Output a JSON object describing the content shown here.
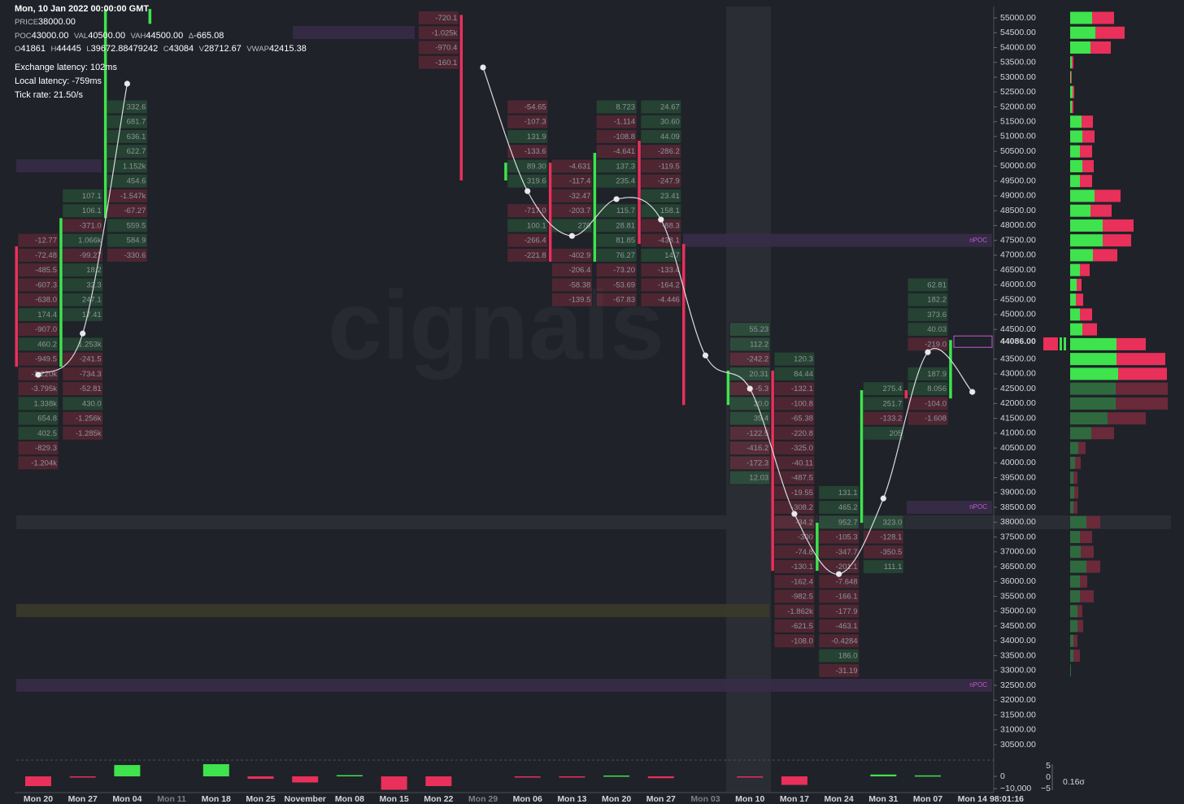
{
  "header": {
    "datetime": "Mon, 10 Jan 2022 00:00:00 GMT",
    "stats1": [
      {
        "key": "PRICE",
        "value": "38000.00"
      }
    ],
    "stats2": [
      {
        "key": "POC",
        "value": "43000.00"
      },
      {
        "key": "VAL",
        "value": "40500.00"
      },
      {
        "key": "VAH",
        "value": "44500.00"
      },
      {
        "key": "Δ",
        "value": "-665.08"
      }
    ],
    "stats3": [
      {
        "key": "O",
        "value": "41861"
      },
      {
        "key": "H",
        "value": "44445"
      },
      {
        "key": "L",
        "value": "39672.88479242"
      },
      {
        "key": "C",
        "value": "43084"
      },
      {
        "key": "V",
        "value": "28712.67"
      },
      {
        "key": "VWAP",
        "value": "42415.38"
      }
    ],
    "latency": [
      "Exchange latency: 102ms",
      "Local latency: -759ms",
      "Tick rate: 21.50/s"
    ]
  },
  "watermark": "cignals",
  "colors": {
    "up": "#3ee34d",
    "down": "#e8305a",
    "up_dim": "#2f6a3f",
    "down_dim": "#6a2a3a"
  },
  "price_axis": {
    "ylim": [
      30500,
      55000
    ],
    "ticks": [
      {
        "value": 55000,
        "label": "55000.00"
      },
      {
        "value": 54500,
        "label": "54500.00"
      },
      {
        "value": 54000,
        "label": "54000.00"
      },
      {
        "value": 53500,
        "label": "53500.00"
      },
      {
        "value": 53000,
        "label": "53000.00"
      },
      {
        "value": 52500,
        "label": "52500.00"
      },
      {
        "value": 52000,
        "label": "52000.00"
      },
      {
        "value": 51500,
        "label": "51500.00"
      },
      {
        "value": 51000,
        "label": "51000.00"
      },
      {
        "value": 50500,
        "label": "50500.00"
      },
      {
        "value": 50000,
        "label": "50000.00"
      },
      {
        "value": 49500,
        "label": "49500.00"
      },
      {
        "value": 49000,
        "label": "49000.00"
      },
      {
        "value": 48500,
        "label": "48500.00"
      },
      {
        "value": 48000,
        "label": "48000.00"
      },
      {
        "value": 47500,
        "label": "47500.00"
      },
      {
        "value": 47000,
        "label": "47000.00"
      },
      {
        "value": 46500,
        "label": "46500.00"
      },
      {
        "value": 46000,
        "label": "46000.00"
      },
      {
        "value": 45500,
        "label": "45500.00"
      },
      {
        "value": 45000,
        "label": "45000.00"
      },
      {
        "value": 44500,
        "label": "44500.00"
      },
      {
        "value": 43500,
        "label": "43500.00"
      },
      {
        "value": 43000,
        "label": "43000.00"
      },
      {
        "value": 42500,
        "label": "42500.00"
      },
      {
        "value": 42000,
        "label": "42000.00"
      },
      {
        "value": 41500,
        "label": "41500.00"
      },
      {
        "value": 41000,
        "label": "41000.00"
      },
      {
        "value": 40500,
        "label": "40500.00"
      },
      {
        "value": 40000,
        "label": "40000.00"
      },
      {
        "value": 39500,
        "label": "39500.00"
      },
      {
        "value": 39000,
        "label": "39000.00"
      },
      {
        "value": 38500,
        "label": "38500.00"
      },
      {
        "value": 38000,
        "label": "38000.00"
      },
      {
        "value": 37500,
        "label": "37500.00"
      },
      {
        "value": 37000,
        "label": "37000.00"
      },
      {
        "value": 36500,
        "label": "36500.00"
      },
      {
        "value": 36000,
        "label": "36000.00"
      },
      {
        "value": 35500,
        "label": "35500.00"
      },
      {
        "value": 35000,
        "label": "35000.00"
      },
      {
        "value": 34500,
        "label": "34500.00"
      },
      {
        "value": 34000,
        "label": "34000.00"
      },
      {
        "value": 33500,
        "label": "33500.00"
      },
      {
        "value": 33000,
        "label": "33000.00"
      },
      {
        "value": 32500,
        "label": "32500.00"
      },
      {
        "value": 32000,
        "label": "32000.00"
      },
      {
        "value": 31500,
        "label": "31500.00"
      },
      {
        "value": 31000,
        "label": "31000.00"
      },
      {
        "value": 30500,
        "label": "30500.00"
      }
    ],
    "current": {
      "value": 44086,
      "label": "44086.00"
    }
  },
  "levels": [
    {
      "label": "nPOC",
      "price": 47500
    },
    {
      "label": "nPOC",
      "price": 38500
    },
    {
      "label": "nPOC",
      "price": 32500
    }
  ],
  "time_axis": {
    "labels": [
      "Mon 20",
      "Mon 27",
      "Mon 04",
      "Mon 11",
      "Mon 18",
      "Mon 25",
      "November",
      "Mon 08",
      "Mon 15",
      "Mon 22",
      "Mon 29",
      "Mon 06",
      "Mon 13",
      "Mon 20",
      "Mon 27",
      "Mon 03",
      "Mon 10",
      "Mon 17",
      "Mon 24",
      "Mon 31",
      "Mon 07",
      "Mon 14"
    ],
    "dim": [
      false,
      false,
      false,
      true,
      false,
      false,
      false,
      false,
      false,
      false,
      true,
      false,
      false,
      false,
      false,
      true,
      false,
      false,
      false,
      false,
      false,
      false
    ],
    "countdown": "98:01:16"
  },
  "candles": [
    {
      "open": 47300,
      "close": 43240
    },
    {
      "open": 43240,
      "close": 48250
    },
    {
      "open": 48250,
      "close": 55300
    },
    {
      "open": 54800,
      "close": 55300
    },
    null,
    null,
    null,
    null,
    null,
    null,
    {
      "open": 55100,
      "close": 49520
    },
    {
      "open": 49520,
      "close": 50120
    },
    {
      "open": 50120,
      "close": 46780
    },
    {
      "open": 46780,
      "close": 50450
    },
    {
      "open": 50860,
      "close": 47380
    },
    {
      "open": 47380,
      "close": 41950
    },
    {
      "open": 41950,
      "close": 43110
    },
    {
      "open": 43110,
      "close": 36360
    },
    {
      "open": 36360,
      "close": 37980
    },
    {
      "open": 37980,
      "close": 42450
    },
    {
      "open": 42450,
      "close": 42170
    },
    {
      "open": 42170,
      "close": 44140
    }
  ],
  "indicator": [
    42970,
    44360,
    52780,
    null,
    null,
    null,
    null,
    null,
    null,
    null,
    53330,
    49160,
    47650,
    48890,
    48200,
    43620,
    42500,
    38280,
    36250,
    38800,
    43730,
    42390
  ],
  "footprint": [
    [
      {
        "price": 47500,
        "text": "-12.77"
      },
      {
        "price": 47000,
        "text": "-72.48"
      },
      {
        "price": 46500,
        "text": "-485.5"
      },
      {
        "price": 46000,
        "text": "-607.3"
      },
      {
        "price": 45500,
        "text": "-638.0"
      },
      {
        "price": 45000,
        "text": "174.4"
      },
      {
        "price": 44500,
        "text": "-907.0"
      },
      {
        "price": 44000,
        "text": "460.2"
      },
      {
        "price": 43500,
        "text": "-949.5"
      },
      {
        "price": 43000,
        "text": "-1.220k"
      },
      {
        "price": 42500,
        "text": "-3.795k"
      },
      {
        "price": 42000,
        "text": "1.338k"
      },
      {
        "price": 41500,
        "text": "654.8"
      },
      {
        "price": 41000,
        "text": "402.5"
      },
      {
        "price": 40500,
        "text": "-829.3"
      },
      {
        "price": 40000,
        "text": "-1.204k"
      }
    ],
    [
      {
        "price": 49000,
        "text": "107.1"
      },
      {
        "price": 48500,
        "text": "106.1"
      },
      {
        "price": 48000,
        "text": "-371.0"
      },
      {
        "price": 47500,
        "text": "1.066k"
      },
      {
        "price": 47000,
        "text": "-99.27"
      },
      {
        "price": 46500,
        "text": "18.2"
      },
      {
        "price": 46000,
        "text": "32.3"
      },
      {
        "price": 45500,
        "text": "247.1"
      },
      {
        "price": 45000,
        "text": "17.41"
      },
      {
        "price": 44000,
        "text": "1.253k"
      },
      {
        "price": 43500,
        "text": "-241.5"
      },
      {
        "price": 43000,
        "text": "-734.3"
      },
      {
        "price": 42500,
        "text": "-52.81"
      },
      {
        "price": 42000,
        "text": "430.0"
      },
      {
        "price": 41500,
        "text": "-1.256k"
      },
      {
        "price": 41000,
        "text": "-1.285k"
      }
    ],
    [
      {
        "price": 52000,
        "text": "332.6"
      },
      {
        "price": 51500,
        "text": "681.7"
      },
      {
        "price": 51000,
        "text": "636.1"
      },
      {
        "price": 50500,
        "text": "622.7"
      },
      {
        "price": 50000,
        "text": "1.152k"
      },
      {
        "price": 49500,
        "text": "454.6"
      },
      {
        "price": 49000,
        "text": "-1.547k"
      },
      {
        "price": 48500,
        "text": "-67.27"
      },
      {
        "price": 48000,
        "text": "559.5"
      },
      {
        "price": 47500,
        "text": "584.9"
      },
      {
        "price": 47000,
        "text": "-330.6"
      }
    ],
    [],
    [],
    [],
    [],
    [],
    [],
    [
      {
        "price": 55000,
        "text": "-720.1"
      },
      {
        "price": 54500,
        "text": "-1.025k"
      },
      {
        "price": 54000,
        "text": "-970.4"
      },
      {
        "price": 53500,
        "text": "-160.1"
      }
    ],
    [],
    [
      {
        "price": 52000,
        "text": "-54.65"
      },
      {
        "price": 51500,
        "text": "-107.3"
      },
      {
        "price": 51000,
        "text": "131.9"
      },
      {
        "price": 50500,
        "text": "-133.6"
      },
      {
        "price": 50000,
        "text": "89.30"
      },
      {
        "price": 49500,
        "text": "319.6"
      },
      {
        "price": 48500,
        "text": "-717.0"
      },
      {
        "price": 48000,
        "text": "100.1"
      },
      {
        "price": 47500,
        "text": "-266.4"
      },
      {
        "price": 47000,
        "text": "-221.8"
      }
    ],
    [
      {
        "price": 50000,
        "text": "-4.631"
      },
      {
        "price": 49500,
        "text": "-117.4"
      },
      {
        "price": 49000,
        "text": "-32.47"
      },
      {
        "price": 48500,
        "text": "-203.7"
      },
      {
        "price": 48000,
        "text": "270"
      },
      {
        "price": 47000,
        "text": "-402.9"
      },
      {
        "price": 46500,
        "text": "-206.4"
      },
      {
        "price": 46000,
        "text": "-58.38"
      },
      {
        "price": 45500,
        "text": "-139.5"
      }
    ],
    [
      {
        "price": 52000,
        "text": "8.723"
      },
      {
        "price": 51500,
        "text": "-1.114"
      },
      {
        "price": 51000,
        "text": "-108.8"
      },
      {
        "price": 50500,
        "text": "-4.641"
      },
      {
        "price": 50000,
        "text": "137.3"
      },
      {
        "price": 49500,
        "text": "235.4"
      },
      {
        "price": 48500,
        "text": "115.7"
      },
      {
        "price": 48000,
        "text": "28.81"
      },
      {
        "price": 47500,
        "text": "81.85"
      },
      {
        "price": 47000,
        "text": "76.27"
      },
      {
        "price": 46500,
        "text": "-73.20"
      },
      {
        "price": 46000,
        "text": "-53.69"
      },
      {
        "price": 45500,
        "text": "-67.83"
      }
    ],
    [
      {
        "price": 52000,
        "text": "24.67"
      },
      {
        "price": 51500,
        "text": "30.60"
      },
      {
        "price": 51000,
        "text": "44.09"
      },
      {
        "price": 50500,
        "text": "-286.2"
      },
      {
        "price": 50000,
        "text": "-119.5"
      },
      {
        "price": 49500,
        "text": "-247.9"
      },
      {
        "price": 49000,
        "text": "23.41"
      },
      {
        "price": 48500,
        "text": "158.1"
      },
      {
        "price": 48000,
        "text": "-88.3"
      },
      {
        "price": 47500,
        "text": "-438.1"
      },
      {
        "price": 47000,
        "text": "14.7"
      },
      {
        "price": 46500,
        "text": "-133.4"
      },
      {
        "price": 46000,
        "text": "-164.2"
      },
      {
        "price": 45500,
        "text": "-4.446"
      }
    ],
    [],
    [
      {
        "price": 44500,
        "text": "55.23"
      },
      {
        "price": 44000,
        "text": "112.2"
      },
      {
        "price": 43500,
        "text": "-242.2"
      },
      {
        "price": 43000,
        "text": "20.31"
      },
      {
        "price": 42500,
        "text": "-5.3"
      },
      {
        "price": 42000,
        "text": "20.0"
      },
      {
        "price": 41500,
        "text": "35.4"
      },
      {
        "price": 41000,
        "text": "-122.5"
      },
      {
        "price": 40500,
        "text": "-416.2"
      },
      {
        "price": 40000,
        "text": "-172.3"
      },
      {
        "price": 39500,
        "text": "12.03"
      }
    ],
    [
      {
        "price": 43500,
        "text": "120.3"
      },
      {
        "price": 43000,
        "text": "84.44"
      },
      {
        "price": 42500,
        "text": "-132.1"
      },
      {
        "price": 42000,
        "text": "-100.8"
      },
      {
        "price": 41500,
        "text": "-65.38"
      },
      {
        "price": 41000,
        "text": "-220.8"
      },
      {
        "price": 40500,
        "text": "-325.0"
      },
      {
        "price": 40000,
        "text": "-40.11"
      },
      {
        "price": 39500,
        "text": "-487.5"
      },
      {
        "price": 39000,
        "text": "-19.55"
      },
      {
        "price": 38500,
        "text": "-308.2"
      },
      {
        "price": 38000,
        "text": "-34.2"
      },
      {
        "price": 37500,
        "text": "-300"
      },
      {
        "price": 37000,
        "text": "-74.8"
      },
      {
        "price": 36500,
        "text": "-130.1"
      },
      {
        "price": 36000,
        "text": "-162.4"
      },
      {
        "price": 35500,
        "text": "-982.5"
      },
      {
        "price": 35000,
        "text": "-1.862k"
      },
      {
        "price": 34500,
        "text": "-621.5"
      },
      {
        "price": 34000,
        "text": "-108.0"
      }
    ],
    [
      {
        "price": 39000,
        "text": "131.1"
      },
      {
        "price": 38500,
        "text": "465.2"
      },
      {
        "price": 38000,
        "text": "952.7"
      },
      {
        "price": 37500,
        "text": "-105.3"
      },
      {
        "price": 37000,
        "text": "-347.7"
      },
      {
        "price": 36500,
        "text": "-201.1"
      },
      {
        "price": 36000,
        "text": "-7.648"
      },
      {
        "price": 35500,
        "text": "-166.1"
      },
      {
        "price": 35000,
        "text": "-177.9"
      },
      {
        "price": 34500,
        "text": "-463.1"
      },
      {
        "price": 34000,
        "text": "-0.4284"
      },
      {
        "price": 33500,
        "text": "186.0"
      },
      {
        "price": 33000,
        "text": "-31.19"
      }
    ],
    [
      {
        "price": 42500,
        "text": "275.4"
      },
      {
        "price": 42000,
        "text": "251.7"
      },
      {
        "price": 41500,
        "text": "-133.2"
      },
      {
        "price": 41000,
        "text": "205"
      },
      {
        "price": 38000,
        "text": "323.0"
      },
      {
        "price": 37500,
        "text": "-128.1"
      },
      {
        "price": 37000,
        "text": "-350.5"
      },
      {
        "price": 36500,
        "text": "111.1"
      }
    ],
    [
      {
        "price": 46000,
        "text": "62.81"
      },
      {
        "price": 45500,
        "text": "182.2"
      },
      {
        "price": 45000,
        "text": "373.6"
      },
      {
        "price": 44500,
        "text": "40.03"
      },
      {
        "price": 44000,
        "text": "-219.0"
      },
      {
        "price": 43000,
        "text": "187.9"
      },
      {
        "price": 42500,
        "text": "8.056"
      },
      {
        "price": 42000,
        "text": "-104.0"
      },
      {
        "price": 41500,
        "text": "-1.608"
      }
    ],
    []
  ],
  "profile": {
    "dim_from": 42500,
    "levels": [
      55000,
      54500,
      54000,
      53500,
      53000,
      52500,
      52000,
      51500,
      51000,
      50500,
      50000,
      49500,
      49000,
      48500,
      48000,
      47500,
      47000,
      46500,
      46000,
      45500,
      45000,
      44500,
      44000,
      43500,
      43000,
      42500,
      42000,
      41500,
      41000,
      40500,
      40000,
      39500,
      39000,
      38500,
      38000,
      37500,
      37000,
      36500,
      36000,
      35500,
      35000,
      34500,
      34000,
      33500,
      33000
    ],
    "buy": [
      27,
      31,
      25,
      2,
      1,
      3,
      2,
      14,
      15,
      12,
      15,
      12,
      30,
      25,
      40,
      40,
      28,
      12,
      8,
      7,
      12,
      15,
      57,
      57,
      59,
      56,
      56,
      46,
      26,
      10,
      6,
      4,
      5,
      4,
      20,
      12,
      13,
      20,
      12,
      12,
      9,
      9,
      4,
      4,
      1
    ],
    "sell": [
      27,
      36,
      25,
      2,
      1,
      2,
      2,
      14,
      15,
      15,
      14,
      15,
      32,
      26,
      38,
      35,
      30,
      12,
      6,
      9,
      15,
      18,
      36,
      60,
      60,
      64,
      64,
      47,
      28,
      9,
      7,
      5,
      5,
      5,
      17,
      15,
      16,
      17,
      9,
      17,
      6,
      7,
      5,
      8,
      0
    ]
  },
  "delta": {
    "values": [
      -8000,
      -700,
      9300,
      null,
      10000,
      -2000,
      -5000,
      1000,
      -11000,
      -8000,
      null,
      -500,
      -500,
      700,
      -1500,
      null,
      -600,
      -7000,
      null,
      1500,
      800,
      null
    ],
    "ticks": [
      0,
      {
        "value": -10000,
        "label": "−10,000"
      }
    ],
    "mini_ticks": [
      "5",
      "0",
      "−5"
    ],
    "sigma": "0.16σ"
  }
}
